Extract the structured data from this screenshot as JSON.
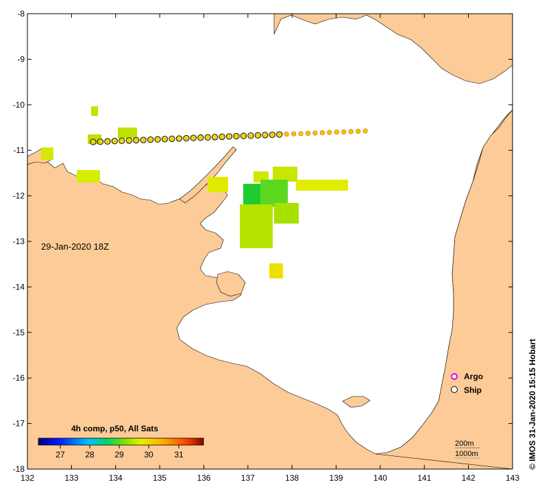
{
  "map": {
    "date_label": "29-Jan-2020 18Z",
    "x_ticks": [
      "132",
      "133",
      "134",
      "135",
      "136",
      "137",
      "138",
      "139",
      "140",
      "141",
      "142",
      "143"
    ],
    "y_ticks": [
      "-8",
      "-9",
      "-10",
      "-11",
      "-12",
      "-13",
      "-14",
      "-15",
      "-16",
      "-17",
      "-18"
    ],
    "colors": {
      "land": "#fccb97",
      "water": "#ffffff",
      "ship": "#f5c21a"
    }
  },
  "colorbar": {
    "title": "4h comp, p50, All Sats",
    "labels": [
      "27",
      "28",
      "29",
      "30",
      "31"
    ]
  },
  "legend": {
    "argo_label": "Argo",
    "ship_label": "Ship",
    "argo_icon": "magenta-circle-icon",
    "ship_icon": "black-circle-icon"
  },
  "depth_legend": {
    "shallow": "200m",
    "deep": "1000m"
  },
  "credit": "© IMOS 31-Jan-2020 15:15 Hobart"
}
